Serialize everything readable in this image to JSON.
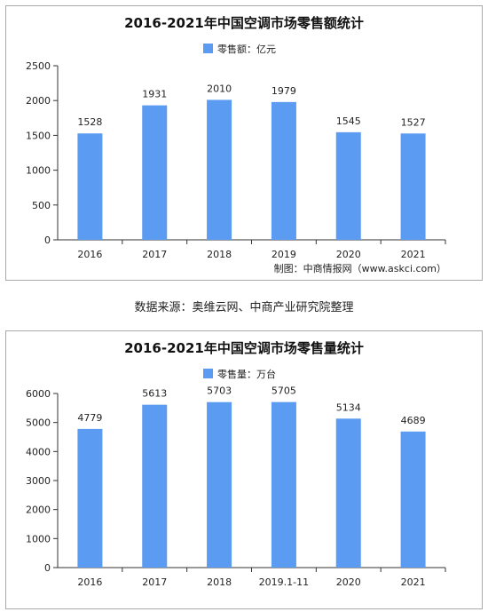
{
  "colors": {
    "bar": "#5b9bf1",
    "axis": "#333333",
    "grid": "#d9d9d9",
    "text": "#222222"
  },
  "chart_data": [
    {
      "type": "bar",
      "title": "2016-2021年中国空调市场零售额统计",
      "legend": "零售额：亿元",
      "legend_position": "top-center",
      "categories": [
        "2016",
        "2017",
        "2018",
        "2019",
        "2020",
        "2021"
      ],
      "series": [
        {
          "name": "零售额：亿元",
          "values": [
            1528,
            1931,
            2010,
            1979,
            1545,
            1527
          ]
        }
      ],
      "yticks": [
        "0",
        "500",
        "1000",
        "1500",
        "2000",
        "2500"
      ],
      "ylim": [
        0,
        2500
      ],
      "grid": false,
      "source": "制图：中商情报网（www.askci.com）"
    },
    {
      "type": "bar",
      "title": "2016-2021年中国空调市场零售量统计",
      "legend": "零售量：万台",
      "legend_position": "top-center",
      "categories": [
        "2016",
        "2017",
        "2018",
        "2019.1-11",
        "2020",
        "2021"
      ],
      "series": [
        {
          "name": "零售量：万台",
          "values": [
            4779,
            5613,
            5703,
            5705,
            5134,
            4689
          ]
        }
      ],
      "yticks": [
        "0",
        "1000",
        "2000",
        "3000",
        "4000",
        "5000",
        "6000"
      ],
      "ylim": [
        0,
        6000
      ],
      "grid": false
    }
  ],
  "caption": "数据来源：奥维云网、中商产业研究院整理"
}
